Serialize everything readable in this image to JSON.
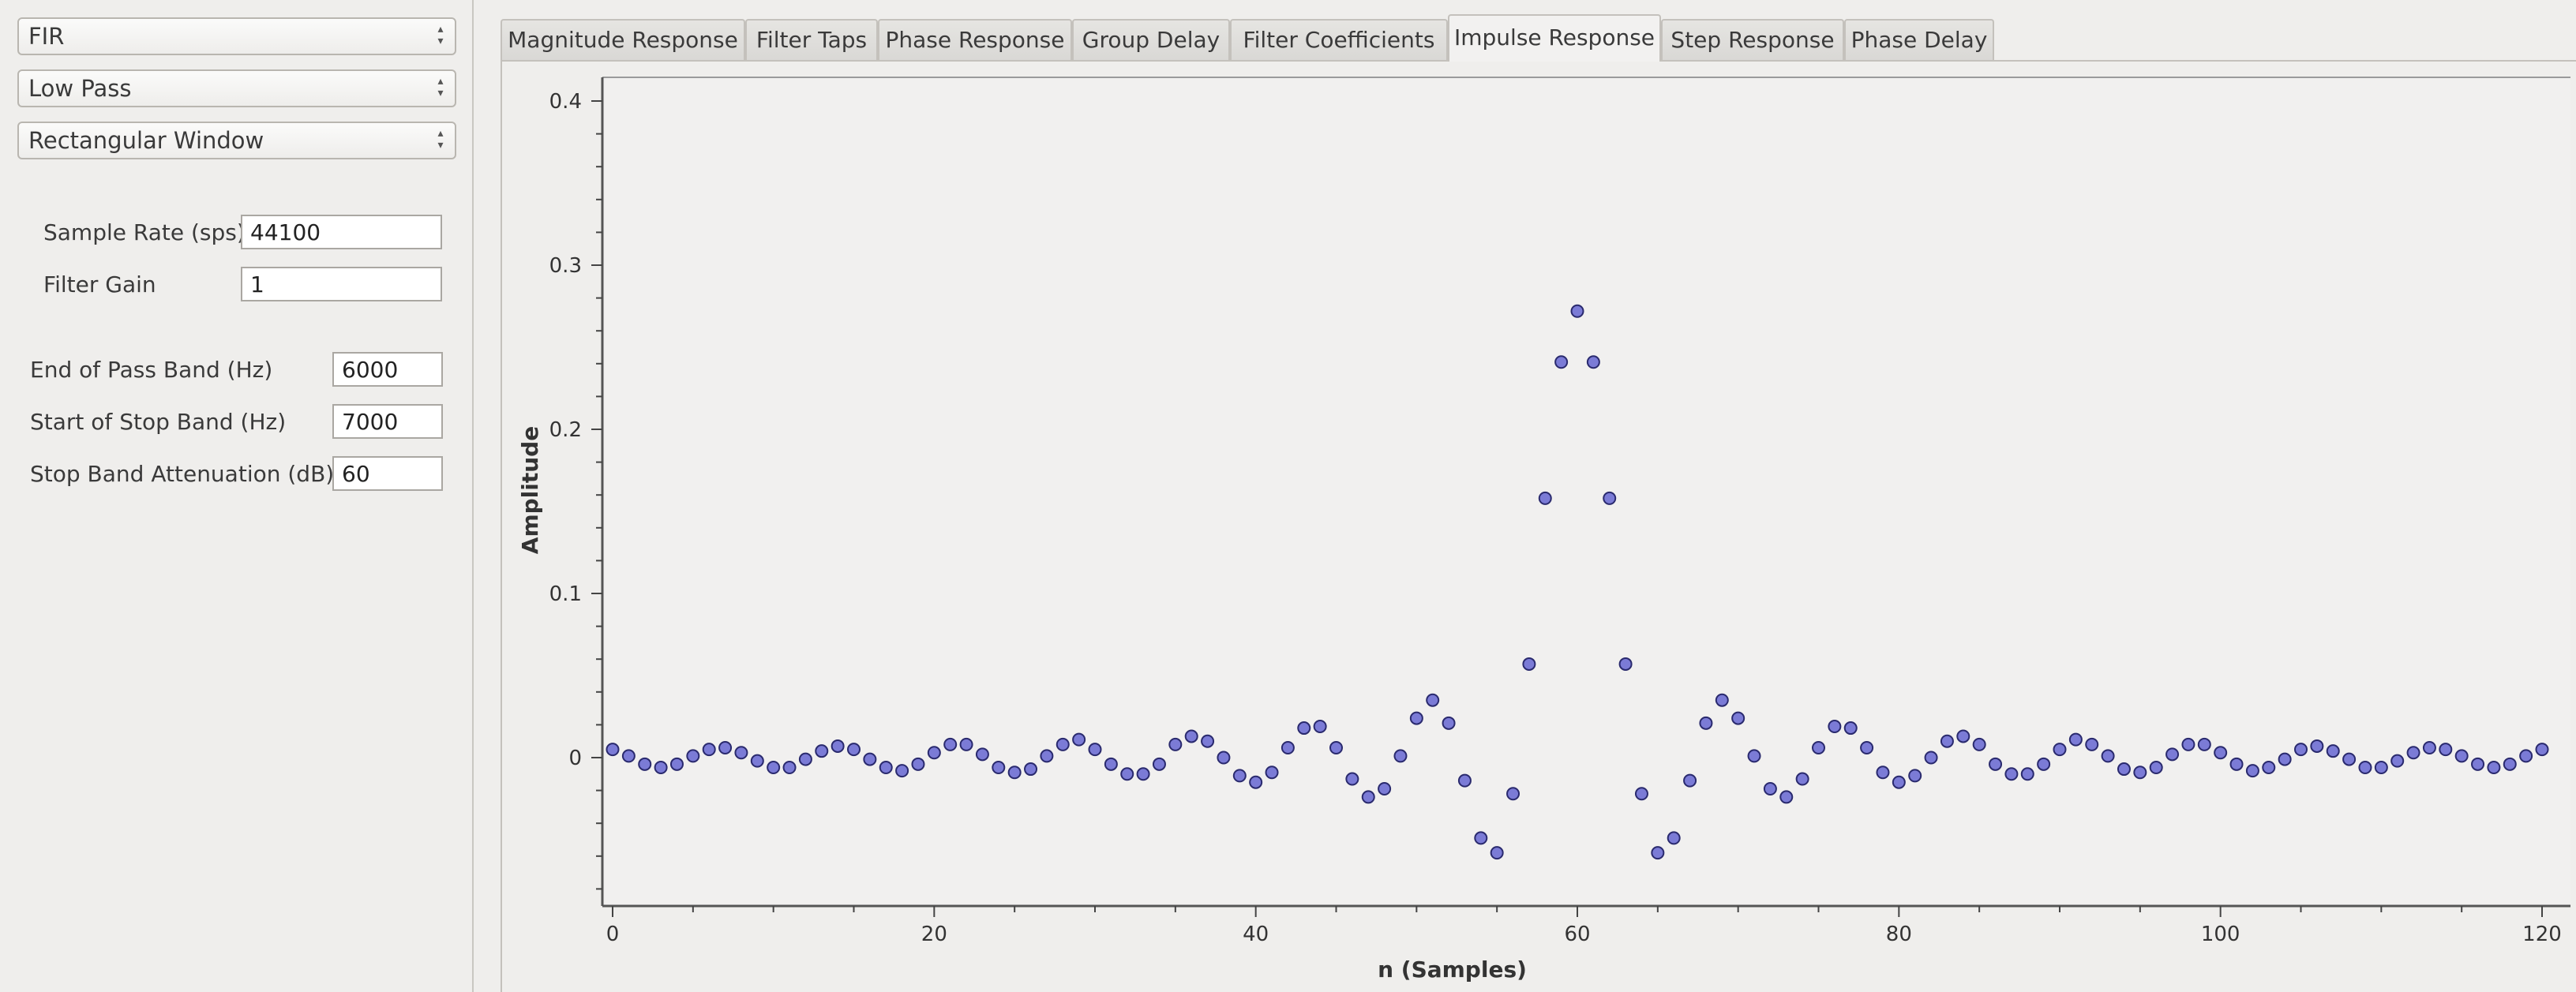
{
  "controls": {
    "filter_type": "FIR",
    "response_type": "Low Pass",
    "window_type": "Rectangular Window",
    "sample_rate_label": "Sample Rate (sps)",
    "sample_rate_value": "44100",
    "filter_gain_label": "Filter Gain",
    "filter_gain_value": "1",
    "pass_band_end_label": "End of Pass Band (Hz)",
    "pass_band_end_value": "6000",
    "stop_band_start_label": "Start of Stop Band (Hz)",
    "stop_band_start_value": "7000",
    "stop_band_atten_label": "Stop Band Attenuation (dB)",
    "stop_band_atten_value": "60"
  },
  "tabs": [
    {
      "label": "Magnitude Response",
      "active": false
    },
    {
      "label": "Filter Taps",
      "active": false
    },
    {
      "label": "Phase Response",
      "active": false
    },
    {
      "label": "Group Delay",
      "active": false
    },
    {
      "label": "Filter Coefficients",
      "active": false
    },
    {
      "label": "Impulse Response",
      "active": true
    },
    {
      "label": "Step Response",
      "active": false
    },
    {
      "label": "Phase Delay",
      "active": false
    }
  ],
  "chart_data": {
    "type": "scatter",
    "xlabel": "n (Samples)",
    "ylabel": "Amplitude",
    "xlim": [
      0,
      120
    ],
    "ylim": [
      -0.085,
      0.41
    ],
    "x_ticks": [
      0,
      20,
      40,
      60,
      80,
      100,
      120
    ],
    "y_ticks": [
      0,
      0.1,
      0.2,
      0.3,
      0.4
    ],
    "y_tick_labels": [
      "0",
      "0.1",
      "0.2",
      "0.3",
      "0.4"
    ],
    "marker_color": "#7b7bd6",
    "series": [
      {
        "x": [
          0,
          1,
          2,
          3,
          4,
          5,
          6,
          7,
          8,
          9,
          10,
          11,
          12,
          13,
          14,
          15,
          16,
          17,
          18,
          19,
          20,
          21,
          22,
          23,
          24,
          25,
          26,
          27,
          28,
          29,
          30,
          31,
          32,
          33,
          34,
          35,
          36,
          37,
          38,
          39,
          40,
          41,
          42,
          43,
          44,
          45,
          46,
          47,
          48,
          49,
          50,
          51,
          52,
          53,
          54,
          55,
          56,
          57,
          58,
          59,
          60,
          61,
          62,
          63,
          64,
          65,
          66,
          67,
          68,
          69,
          70,
          71,
          72,
          73,
          74,
          75,
          76,
          77,
          78,
          79,
          80,
          81,
          82,
          83,
          84,
          85,
          86,
          87,
          88,
          89,
          90,
          91,
          92,
          93,
          94,
          95,
          96,
          97,
          98,
          99,
          100,
          101,
          102,
          103,
          104,
          105,
          106,
          107,
          108,
          109,
          110,
          111,
          112,
          113,
          114,
          115,
          116,
          117,
          118,
          119,
          120
        ],
        "y": [
          0.005,
          0.001,
          -0.004,
          -0.006,
          -0.004,
          0.001,
          0.005,
          0.006,
          0.003,
          -0.002,
          -0.006,
          -0.006,
          -0.001,
          0.004,
          0.007,
          0.005,
          -0.001,
          -0.006,
          -0.008,
          -0.004,
          0.003,
          0.008,
          0.008,
          0.002,
          -0.006,
          -0.009,
          -0.007,
          0.001,
          0.008,
          0.011,
          0.005,
          -0.004,
          -0.01,
          -0.01,
          -0.004,
          0.008,
          0.013,
          0.01,
          0.0,
          -0.011,
          -0.015,
          -0.009,
          0.006,
          0.018,
          0.019,
          0.006,
          -0.013,
          -0.024,
          -0.019,
          0.001,
          0.024,
          0.035,
          0.021,
          -0.014,
          -0.049,
          -0.058,
          -0.022,
          0.057,
          0.158,
          0.241,
          0.272,
          0.241,
          0.158,
          0.057,
          -0.022,
          -0.058,
          -0.049,
          -0.014,
          0.021,
          0.035,
          0.024,
          0.001,
          -0.019,
          -0.024,
          -0.013,
          0.006,
          0.019,
          0.018,
          0.006,
          -0.009,
          -0.015,
          -0.011,
          0.0,
          0.01,
          0.013,
          0.008,
          -0.004,
          -0.01,
          -0.01,
          -0.004,
          0.005,
          0.011,
          0.008,
          0.001,
          -0.007,
          -0.009,
          -0.006,
          0.002,
          0.008,
          0.008,
          0.003,
          -0.004,
          -0.008,
          -0.006,
          -0.001,
          0.005,
          0.007,
          0.004,
          -0.001,
          -0.006,
          -0.006,
          -0.002,
          0.003,
          0.006,
          0.005,
          0.001,
          -0.004,
          -0.006,
          -0.004,
          0.001,
          0.005
        ]
      }
    ]
  }
}
